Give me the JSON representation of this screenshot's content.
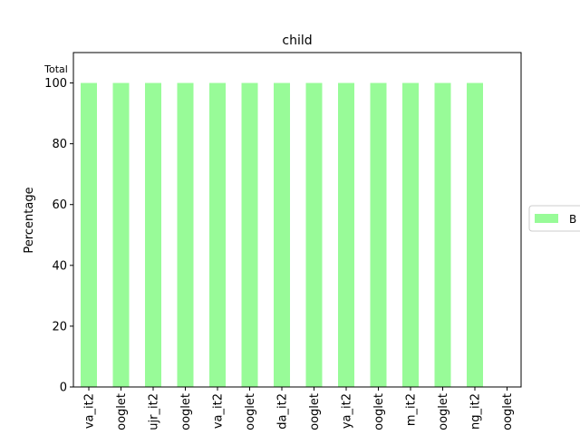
{
  "chart_data": {
    "type": "bar",
    "title": "child",
    "ylabel": "Percentage",
    "xlabel": "",
    "annotation": "Total",
    "ylim": [
      0,
      110
    ],
    "yticks": [
      0,
      20,
      40,
      60,
      80,
      100
    ],
    "categories": [
      "va_it2",
      "ooglet",
      "ujr_it2",
      "ooglet",
      "va_it2",
      "ooglet",
      "da_it2",
      "ooglet",
      "ya_it2",
      "ooglet",
      "m_it2",
      "ooglet",
      "ng_it2",
      "ooglet"
    ],
    "series": [
      {
        "name": "B",
        "color": "#98fb98",
        "values": [
          100,
          100,
          100,
          100,
          100,
          100,
          100,
          100,
          100,
          100,
          100,
          100,
          100,
          0
        ]
      }
    ],
    "legend": {
      "position": "center-right, outside plot",
      "entries": [
        "B"
      ]
    },
    "grid": false
  }
}
